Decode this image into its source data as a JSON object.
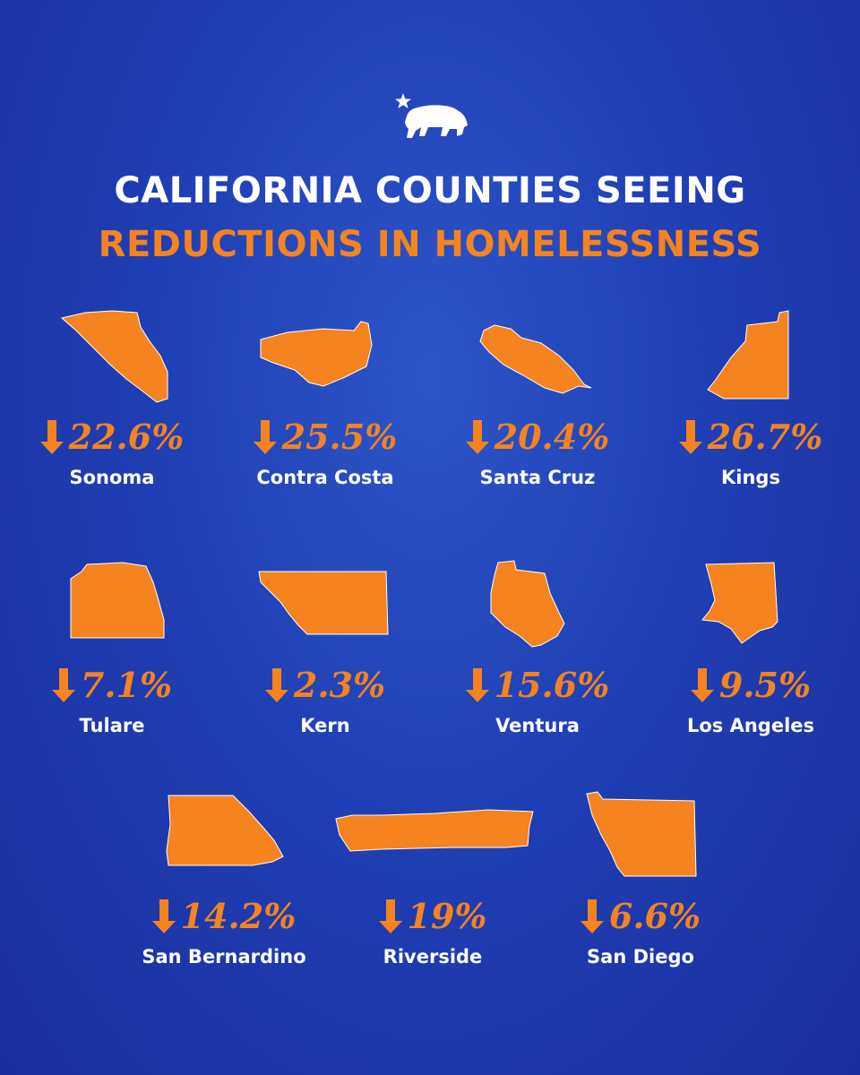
{
  "title": {
    "line1": "CALIFORNIA COUNTIES SEEING",
    "line2": "REDUCTIONS IN HOMELESSNESS"
  },
  "colors": {
    "background": "#1f3fb4",
    "accent": "#f5831f",
    "text": "#ffffff"
  },
  "icons": {
    "logo": "california-bear-star-icon",
    "arrow": "down-arrow-icon"
  },
  "counties": [
    {
      "name": "Sonoma",
      "change": "22.6%",
      "value": -22.6
    },
    {
      "name": "Contra Costa",
      "change": "25.5%",
      "value": -25.5
    },
    {
      "name": "Santa Cruz",
      "change": "20.4%",
      "value": -20.4
    },
    {
      "name": "Kings",
      "change": "26.7%",
      "value": -26.7
    },
    {
      "name": "Tulare",
      "change": "7.1%",
      "value": -7.1
    },
    {
      "name": "Kern",
      "change": "2.3%",
      "value": -2.3
    },
    {
      "name": "Ventura",
      "change": "15.6%",
      "value": -15.6
    },
    {
      "name": "Los Angeles",
      "change": "9.5%",
      "value": -9.5
    },
    {
      "name": "San Bernardino",
      "change": "14.2%",
      "value": -14.2
    },
    {
      "name": "Riverside",
      "change": "19%",
      "value": -19
    },
    {
      "name": "San Diego",
      "change": "6.6%",
      "value": -6.6
    }
  ]
}
